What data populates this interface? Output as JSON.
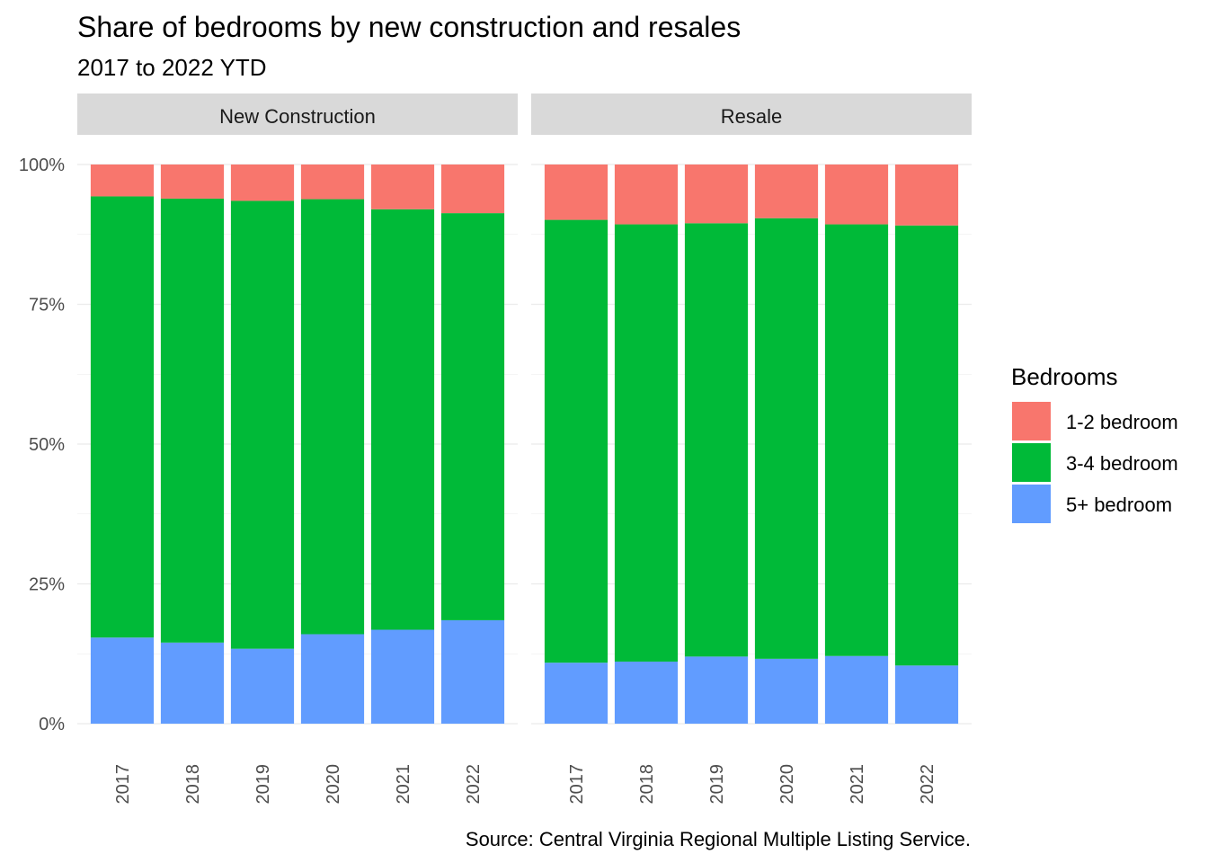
{
  "chart_data": {
    "type": "bar",
    "stacked": true,
    "percent": true,
    "title": "Share of bedrooms by new construction and resales",
    "subtitle": "2017 to 2022 YTD",
    "caption": "Source: Central Virginia Regional Multiple Listing Service.",
    "xlabel": "",
    "ylabel": "",
    "ylim": [
      0,
      1
    ],
    "y_ticks": [
      "0%",
      "25%",
      "50%",
      "75%",
      "100%"
    ],
    "grid": true,
    "legend": {
      "title": "Bedrooms",
      "position": "right"
    },
    "categories": [
      "2017",
      "2018",
      "2019",
      "2020",
      "2021",
      "2022"
    ],
    "series_colors": {
      "1-2 bedroom": "#F8766D",
      "3-4 bedroom": "#00BA38",
      "5+ bedroom": "#619CFF"
    },
    "panels": [
      {
        "name": "New Construction",
        "series": [
          {
            "name": "1-2 bedroom",
            "values": [
              0.057,
              0.061,
              0.065,
              0.062,
              0.08,
              0.087
            ]
          },
          {
            "name": "3-4 bedroom",
            "values": [
              0.789,
              0.794,
              0.801,
              0.778,
              0.752,
              0.728
            ]
          },
          {
            "name": "5+ bedroom",
            "values": [
              0.154,
              0.145,
              0.134,
              0.16,
              0.168,
              0.185
            ]
          }
        ]
      },
      {
        "name": "Resale",
        "series": [
          {
            "name": "1-2 bedroom",
            "values": [
              0.099,
              0.107,
              0.105,
              0.096,
              0.107,
              0.109
            ]
          },
          {
            "name": "3-4 bedroom",
            "values": [
              0.792,
              0.782,
              0.775,
              0.788,
              0.772,
              0.787
            ]
          },
          {
            "name": "5+ bedroom",
            "values": [
              0.109,
              0.111,
              0.12,
              0.116,
              0.121,
              0.104
            ]
          }
        ]
      }
    ]
  }
}
